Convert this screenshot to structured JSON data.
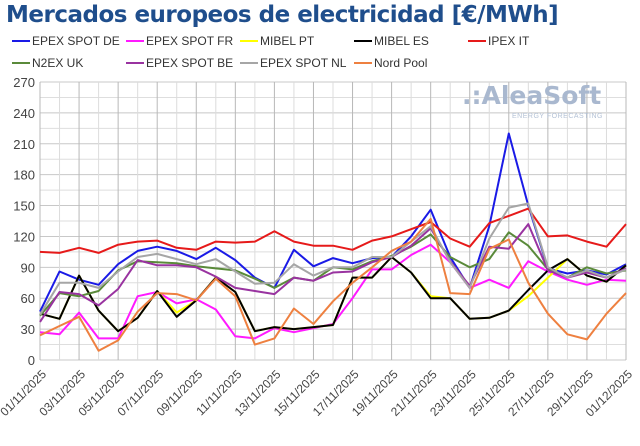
{
  "chart_data": {
    "type": "line",
    "title": "Mercados europeos de electricidad [€/MWh]",
    "xlabel": "",
    "ylabel": "",
    "ylim": [
      0,
      270
    ],
    "yticks": [
      0,
      30,
      60,
      90,
      120,
      150,
      180,
      210,
      240,
      270
    ],
    "grid": true,
    "legend_placement": "top",
    "x": [
      "01/11/2025",
      "02/11/2025",
      "03/11/2025",
      "04/11/2025",
      "05/11/2025",
      "06/11/2025",
      "07/11/2025",
      "08/11/2025",
      "09/11/2025",
      "10/11/2025",
      "11/11/2025",
      "12/11/2025",
      "13/11/2025",
      "14/11/2025",
      "15/11/2025",
      "16/11/2025",
      "17/11/2025",
      "18/11/2025",
      "19/11/2025",
      "20/11/2025",
      "21/11/2025",
      "22/11/2025",
      "23/11/2025",
      "24/11/2025",
      "25/11/2025",
      "26/11/2025",
      "27/11/2025",
      "28/11/2025",
      "29/11/2025",
      "30/11/2025",
      "01/12/2025"
    ],
    "xtick_labels": [
      "01/11/2025",
      "03/11/2025",
      "05/11/2025",
      "07/11/2025",
      "09/11/2025",
      "11/11/2025",
      "13/11/2025",
      "15/11/2025",
      "17/11/2025",
      "19/11/2025",
      "21/11/2025",
      "23/11/2025",
      "25/11/2025",
      "27/11/2025",
      "29/11/2025",
      "01/12/2025"
    ],
    "series": [
      {
        "name": "EPEX SPOT DE",
        "color": "#1a1ae6",
        "values": [
          47,
          86,
          78,
          73,
          93,
          106,
          110,
          106,
          98,
          109,
          97,
          80,
          70,
          107,
          91,
          99,
          94,
          99,
          100,
          120,
          146,
          100,
          70,
          130,
          220,
          150,
          89,
          84,
          87,
          83,
          93
        ]
      },
      {
        "name": "EPEX SPOT FR",
        "color": "#ff1aff",
        "values": [
          27,
          25,
          46,
          21,
          21,
          62,
          66,
          55,
          59,
          49,
          23,
          21,
          31,
          27,
          31,
          35,
          60,
          88,
          88,
          102,
          112,
          95,
          70,
          78,
          70,
          96,
          86,
          78,
          73,
          78,
          77
        ]
      },
      {
        "name": "MIBEL PT",
        "color": "#ffff00",
        "values": [
          45,
          40,
          82,
          48,
          28,
          41,
          67,
          46,
          58,
          80,
          66,
          28,
          32,
          30,
          32,
          34,
          80,
          80,
          100,
          85,
          62,
          60,
          40,
          41,
          48,
          62,
          80,
          98,
          82,
          76,
          92
        ]
      },
      {
        "name": "MIBEL ES",
        "color": "#000000",
        "values": [
          45,
          40,
          82,
          48,
          28,
          41,
          67,
          42,
          58,
          80,
          66,
          28,
          32,
          30,
          32,
          34,
          80,
          80,
          100,
          85,
          60,
          60,
          40,
          41,
          48,
          68,
          87,
          98,
          82,
          76,
          92
        ]
      },
      {
        "name": "IPEX IT",
        "color": "#e61a1a",
        "values": [
          105,
          104,
          109,
          104,
          112,
          115,
          116,
          109,
          107,
          115,
          114,
          115,
          125,
          115,
          111,
          111,
          107,
          116,
          120,
          127,
          134,
          118,
          110,
          133,
          140,
          147,
          120,
          121,
          115,
          110,
          132
        ]
      },
      {
        "name": "N2EX UK",
        "color": "#5a8a3a",
        "values": [
          43,
          65,
          62,
          67,
          87,
          96,
          95,
          94,
          91,
          89,
          87,
          79,
          70,
          80,
          77,
          90,
          88,
          96,
          101,
          110,
          122,
          100,
          90,
          98,
          124,
          111,
          88,
          80,
          90,
          84,
          87
        ]
      },
      {
        "name": "EPEX SPOT BE",
        "color": "#9933a0",
        "values": [
          37,
          66,
          64,
          53,
          69,
          97,
          92,
          92,
          90,
          81,
          70,
          67,
          64,
          80,
          77,
          85,
          86,
          95,
          100,
          111,
          128,
          96,
          72,
          110,
          108,
          132,
          87,
          80,
          85,
          80,
          89
        ]
      },
      {
        "name": "EPEX SPOT NL",
        "color": "#a6a6a6",
        "values": [
          44,
          75,
          75,
          70,
          86,
          100,
          103,
          98,
          93,
          98,
          86,
          74,
          75,
          93,
          82,
          90,
          90,
          100,
          100,
          115,
          130,
          95,
          70,
          118,
          148,
          152,
          90,
          80,
          87,
          80,
          88
        ]
      },
      {
        "name": "Nord Pool",
        "color": "#ee8040",
        "values": [
          24,
          33,
          42,
          9,
          19,
          47,
          65,
          64,
          58,
          79,
          62,
          15,
          21,
          50,
          35,
          57,
          75,
          90,
          106,
          115,
          137,
          65,
          64,
          108,
          117,
          75,
          45,
          25,
          20,
          45,
          65
        ]
      }
    ],
    "watermark": "AleaSoft ENERGY FORECASTING"
  }
}
